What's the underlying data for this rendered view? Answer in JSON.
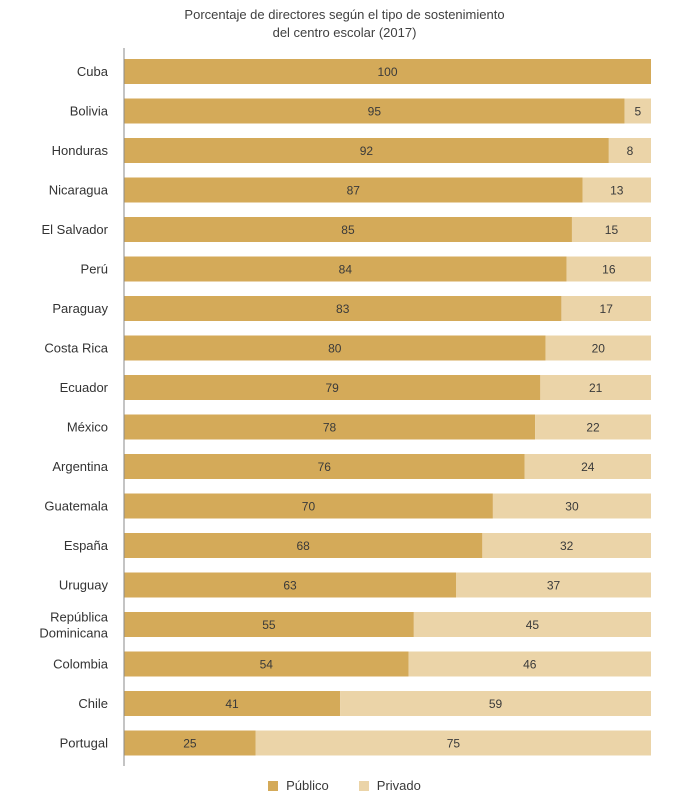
{
  "chart_data": {
    "type": "bar",
    "orientation": "horizontal",
    "stacked": true,
    "title_lines": [
      "Porcentaje de directores según el tipo de sostenimiento",
      "del centro escolar (2017)"
    ],
    "categories": [
      "Cuba",
      "Bolivia",
      "Honduras",
      "Nicaragua",
      "El Salvador",
      "Perú",
      "Paraguay",
      "Costa Rica",
      "Ecuador",
      "México",
      "Argentina",
      "Guatemala",
      "España",
      "Uruguay",
      "República Dominicana",
      "Colombia",
      "Chile",
      "Portugal"
    ],
    "series": [
      {
        "name": "Público",
        "color": "#d4aa59",
        "values": [
          100,
          95,
          92,
          87,
          85,
          84,
          83,
          80,
          79,
          78,
          76,
          70,
          68,
          63,
          55,
          54,
          41,
          25
        ]
      },
      {
        "name": "Privado",
        "color": "#ebd4a8",
        "values": [
          0,
          5,
          8,
          13,
          15,
          16,
          17,
          20,
          21,
          22,
          24,
          30,
          32,
          37,
          45,
          46,
          59,
          75
        ]
      }
    ],
    "xlim": [
      0,
      100
    ],
    "grid": false,
    "legend_position": "bottom-center"
  }
}
